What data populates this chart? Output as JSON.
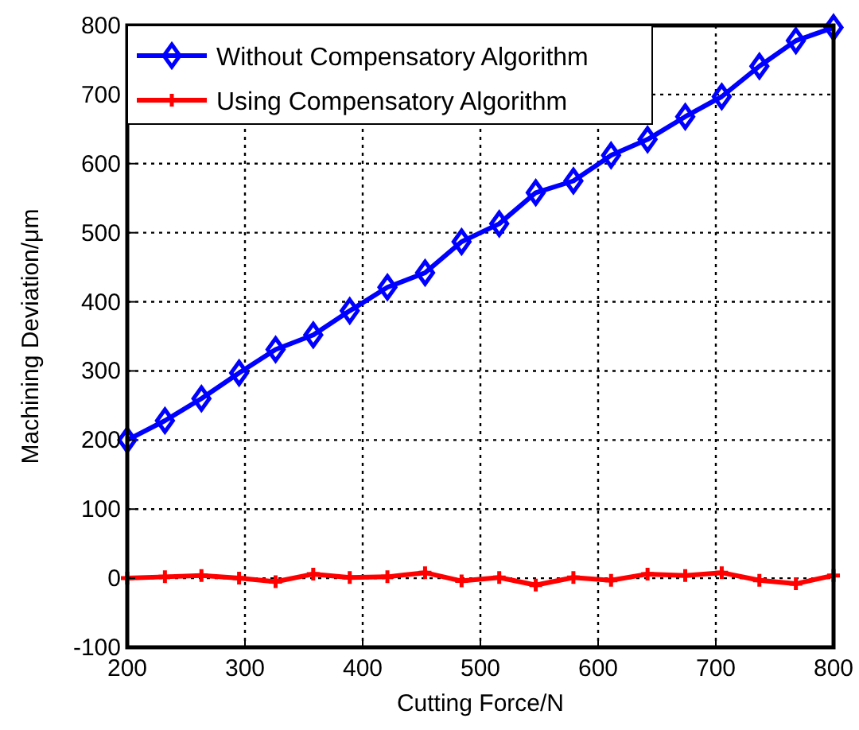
{
  "chart_data": {
    "type": "line",
    "xlabel": "Cutting Force/N",
    "ylabel": "Machining Deviation/μm",
    "x": [
      200,
      232,
      263,
      295,
      326,
      358,
      389,
      421,
      453,
      484,
      516,
      547,
      579,
      611,
      642,
      674,
      705,
      737,
      768,
      800
    ],
    "series": [
      {
        "name": "Without Compensatory Algorithm",
        "color": "#0000ff",
        "marker": "diamond",
        "values": [
          200,
          228,
          260,
          297,
          331,
          352,
          387,
          421,
          442,
          487,
          513,
          558,
          575,
          612,
          635,
          668,
          697,
          741,
          778,
          797
        ]
      },
      {
        "name": "Using Compensatory Algorithm",
        "color": "#ff0000",
        "marker": "cross",
        "values": [
          0,
          2,
          4,
          0,
          -5,
          6,
          1,
          2,
          8,
          -4,
          1,
          -10,
          1,
          -3,
          6,
          4,
          8,
          -3,
          -8,
          4
        ]
      }
    ],
    "xlim": [
      200,
      800
    ],
    "xticks": [
      200,
      300,
      400,
      500,
      600,
      700,
      800
    ],
    "ylim": [
      -100,
      800
    ],
    "yticks": [
      -100,
      0,
      100,
      200,
      300,
      400,
      500,
      600,
      700,
      800
    ],
    "grid": true,
    "legend": "top left",
    "line_style": "solid"
  }
}
